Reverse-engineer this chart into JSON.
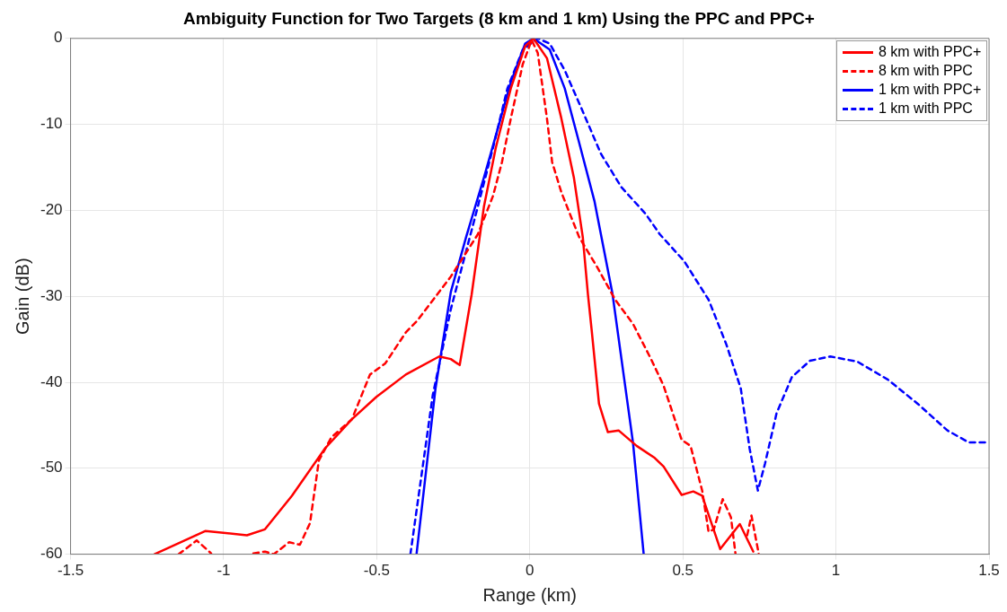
{
  "chart_data": {
    "type": "line",
    "title": "Ambiguity Function for Two Targets (8 km and 1 km) Using the PPC and PPC+",
    "xlabel": "Range (km)",
    "ylabel": "Gain (dB)",
    "xlim": [
      -1.5,
      1.5
    ],
    "xticks": [
      -1.5,
      -1,
      -0.5,
      0,
      0.5,
      1,
      1.5
    ],
    "ylim": [
      -60,
      0
    ],
    "yticks": [
      -60,
      -50,
      -40,
      -30,
      -20,
      -10,
      0
    ],
    "grid": true,
    "legend": "top right",
    "marker": "none",
    "series": [
      {
        "name": "8 km with PPC+",
        "color": "#ff0000",
        "line_style": "solid",
        "x": [
          -1.226,
          -1.059,
          -0.924,
          -0.865,
          -0.777,
          -0.669,
          -0.581,
          -0.501,
          -0.405,
          -0.296,
          -0.258,
          -0.229,
          -0.19,
          -0.15,
          -0.111,
          -0.062,
          -0.015,
          0.012,
          0.056,
          0.103,
          0.144,
          0.173,
          0.19,
          0.202,
          0.226,
          0.255,
          0.29,
          0.349,
          0.408,
          0.437,
          0.496,
          0.534,
          0.563,
          0.622,
          0.686,
          0.73
        ],
        "values": [
          -60,
          -57.3,
          -57.8,
          -57.1,
          -53.2,
          -47.7,
          -44.3,
          -41.7,
          -39.1,
          -37.0,
          -37.3,
          -38.0,
          -29.8,
          -19.6,
          -12.7,
          -5.8,
          -0.9,
          0,
          -2.3,
          -9.3,
          -16.2,
          -23.1,
          -29.8,
          -33.9,
          -42.5,
          -45.8,
          -45.6,
          -47.4,
          -48.8,
          -49.8,
          -53.1,
          -52.7,
          -53.2,
          -59.4,
          -56.5,
          -59.7
        ]
      },
      {
        "name": "8 km with PPC",
        "color": "#ff0000",
        "line_style": "dashed",
        "x": [
          -1.147,
          -1.088,
          -1.041,
          -1.02,
          -0.92,
          -0.903,
          -0.865,
          -0.836,
          -0.786,
          -0.751,
          -0.718,
          -0.689,
          -0.648,
          -0.581,
          -0.522,
          -0.472,
          -0.405,
          -0.367,
          -0.258,
          -0.17,
          -0.12,
          -0.091,
          -0.062,
          -0.023,
          0.006,
          0.026,
          0.056,
          0.073,
          0.103,
          0.161,
          0.22,
          0.279,
          0.337,
          0.396,
          0.437,
          0.496,
          0.525,
          0.563,
          0.584,
          0.601,
          0.63,
          0.657,
          0.672,
          0.69,
          0.71,
          0.724,
          0.748
        ],
        "values": [
          -60,
          -58.4,
          -59.9,
          null,
          null,
          -59.9,
          -59.7,
          -60,
          -58.6,
          -58.9,
          -56.4,
          -49.1,
          -46.4,
          -44.3,
          -39.1,
          -37.8,
          -34.2,
          -32.8,
          -27.7,
          -22.8,
          -18.3,
          -14.4,
          -9.3,
          -3.0,
          -0.2,
          -1.7,
          -9.3,
          -14.4,
          -17.9,
          -23.1,
          -26.6,
          -30.4,
          -33.2,
          -37.3,
          -40.4,
          -46.7,
          -47.4,
          -52.6,
          -57.4,
          -57.1,
          -53.6,
          -55.7,
          -60,
          null,
          -57.8,
          -55.5,
          -60
        ]
      },
      {
        "name": "1 km with PPC+",
        "color": "#0000ff",
        "line_style": "solid",
        "x": [
          -0.37,
          -0.308,
          -0.258,
          -0.208,
          -0.15,
          -0.111,
          -0.062,
          -0.015,
          0.012,
          0.065,
          0.114,
          0.161,
          0.211,
          0.27,
          0.337,
          0.372
        ],
        "values": [
          -60,
          -40.7,
          -29.5,
          -23.1,
          -16.2,
          -11.3,
          -5.1,
          -0.6,
          0,
          -1.3,
          -5.8,
          -12.1,
          -18.9,
          -29.7,
          -47,
          -60
        ]
      },
      {
        "name": "1 km with PPC",
        "color": "#0000ff",
        "line_style": "dashed",
        "x": [
          -0.39,
          -0.317,
          -0.258,
          -0.17,
          -0.12,
          -0.073,
          -0.023,
          0.026,
          0.065,
          0.114,
          0.173,
          0.232,
          0.299,
          0.378,
          0.425,
          0.504,
          0.584,
          0.642,
          0.689,
          0.718,
          0.745,
          0.768,
          0.806,
          0.856,
          0.915,
          0.982,
          1.07,
          1.17,
          1.267,
          1.364,
          1.434,
          1.5
        ],
        "values": [
          -60,
          -41.5,
          -31.5,
          -19.6,
          -12.7,
          -5.8,
          -1.3,
          0,
          -0.6,
          -3.7,
          -8.5,
          -13.4,
          -17.3,
          -20.4,
          -22.8,
          -25.9,
          -30.4,
          -35.6,
          -40.7,
          -47.7,
          -52.6,
          -49.5,
          -43.6,
          -39.4,
          -37.5,
          -37.0,
          -37.6,
          -39.7,
          -42.5,
          -45.6,
          -47,
          -47
        ]
      }
    ]
  }
}
